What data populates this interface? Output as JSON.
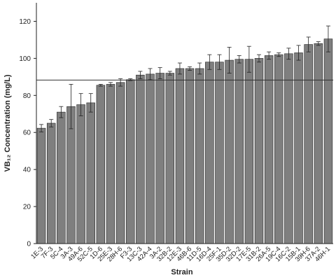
{
  "chart_data": {
    "type": "bar",
    "x_label": "Strain",
    "y_label": "VB₁₂ Concentration (mg/L)",
    "categories": [
      "1E-3",
      "7F-3",
      "5C-4",
      "3A-3",
      "49A-6",
      "52C-5",
      "1D-6",
      "25E-3",
      "28H-6",
      "F3-3",
      "13C-3",
      "42A-4",
      "3A-2",
      "32B-2",
      "12E-3",
      "46B-6",
      "11D-5",
      "16D-4",
      "25F-1",
      "35D-2",
      "32D-2",
      "17E-5",
      "31B-2",
      "26A-5",
      "19C-4",
      "16C-2",
      "15B-1",
      "39H-6",
      "37A-2",
      "46H-1"
    ],
    "values": [
      62.3,
      65,
      71,
      74,
      75,
      76,
      85.5,
      86,
      87,
      88.5,
      91,
      91.5,
      92,
      92,
      94.5,
      94.5,
      94.5,
      98,
      98,
      99,
      99.5,
      99.5,
      100,
      101.5,
      102,
      102.5,
      103,
      107.5,
      108,
      110.5
    ],
    "errors": [
      2,
      2,
      3,
      12,
      6,
      5,
      0.5,
      1,
      2,
      0.5,
      2,
      3,
      3,
      1,
      3,
      1,
      3,
      4,
      4,
      7,
      2,
      7,
      2,
      2,
      1,
      3,
      4,
      4,
      1,
      7
    ],
    "reference_line": 88.3,
    "color": "#7f7f7f",
    "ylim": [
      0,
      130
    ],
    "yticks": [
      0,
      20,
      40,
      60,
      80,
      100,
      120
    ]
  }
}
